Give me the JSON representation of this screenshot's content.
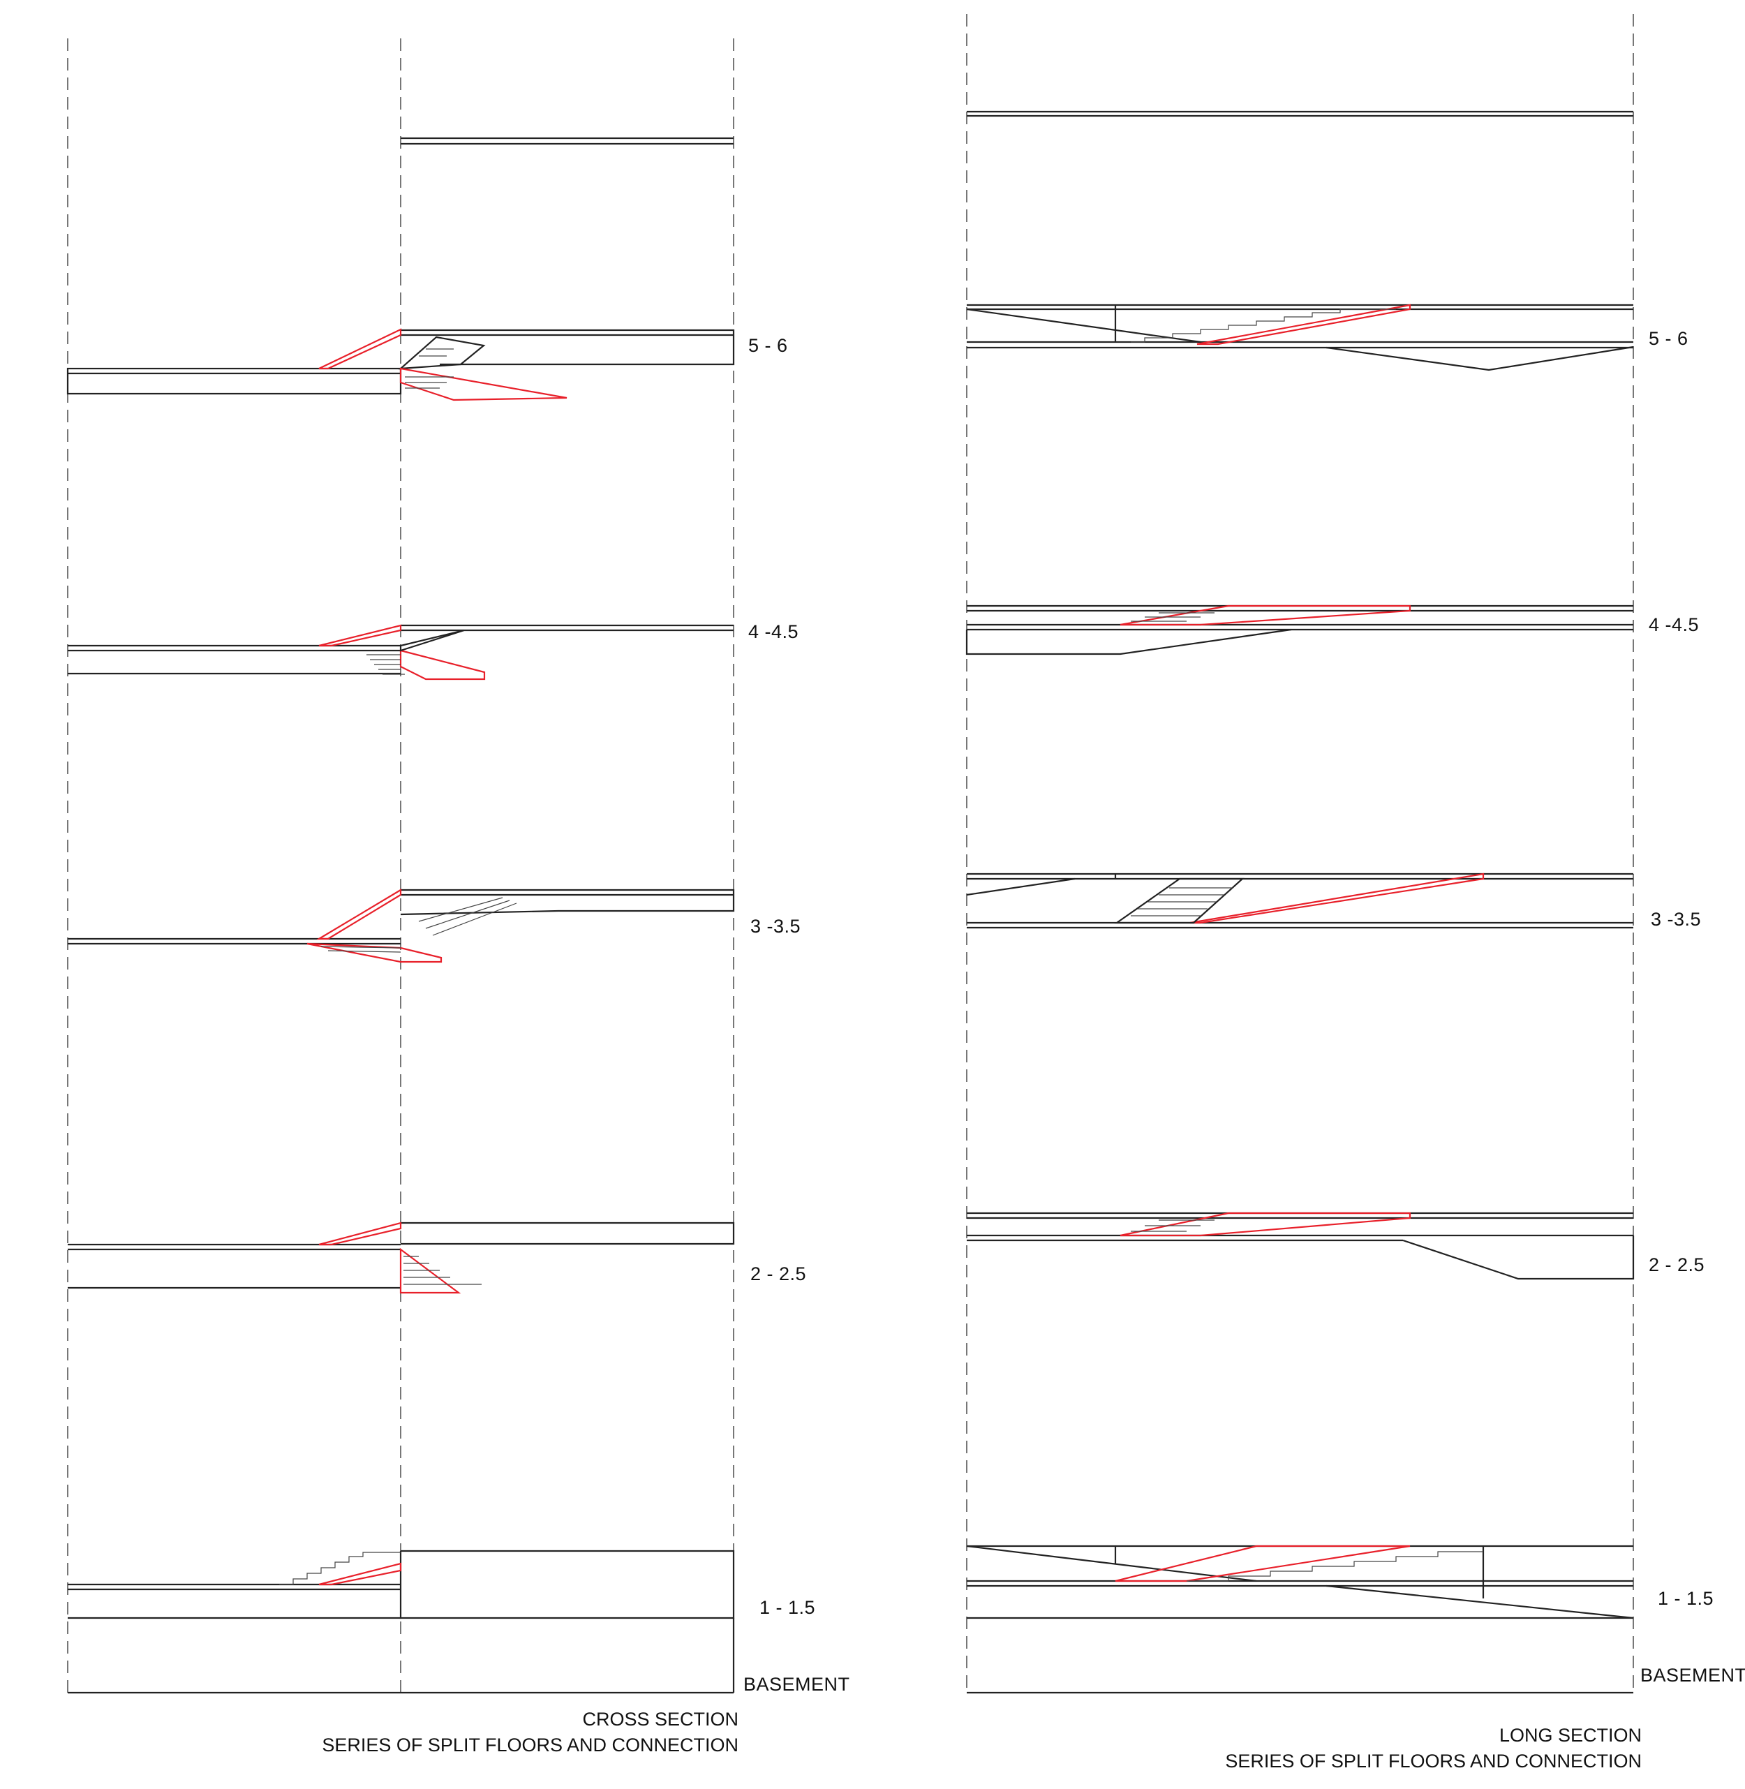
{
  "colors": {
    "line": "#222222",
    "connection": "#e8202a",
    "axis": "#777777"
  },
  "cross_section": {
    "level_labels": [
      "5 - 6",
      "4 -4.5",
      "3 -3.5",
      "2 - 2.5",
      "1 - 1.5"
    ],
    "basement_label": "BASEMENT",
    "caption_line1": "CROSS SECTION",
    "caption_line2": "SERIES OF SPLIT FLOORS AND CONNECTION"
  },
  "long_section": {
    "level_labels": [
      "5 - 6",
      "4 -4.5",
      "3 -3.5",
      "2 - 2.5",
      "1 - 1.5"
    ],
    "basement_label": "BASEMENT",
    "caption_line1": "LONG SECTION",
    "caption_line2": "SERIES OF SPLIT FLOORS AND CONNECTION"
  }
}
